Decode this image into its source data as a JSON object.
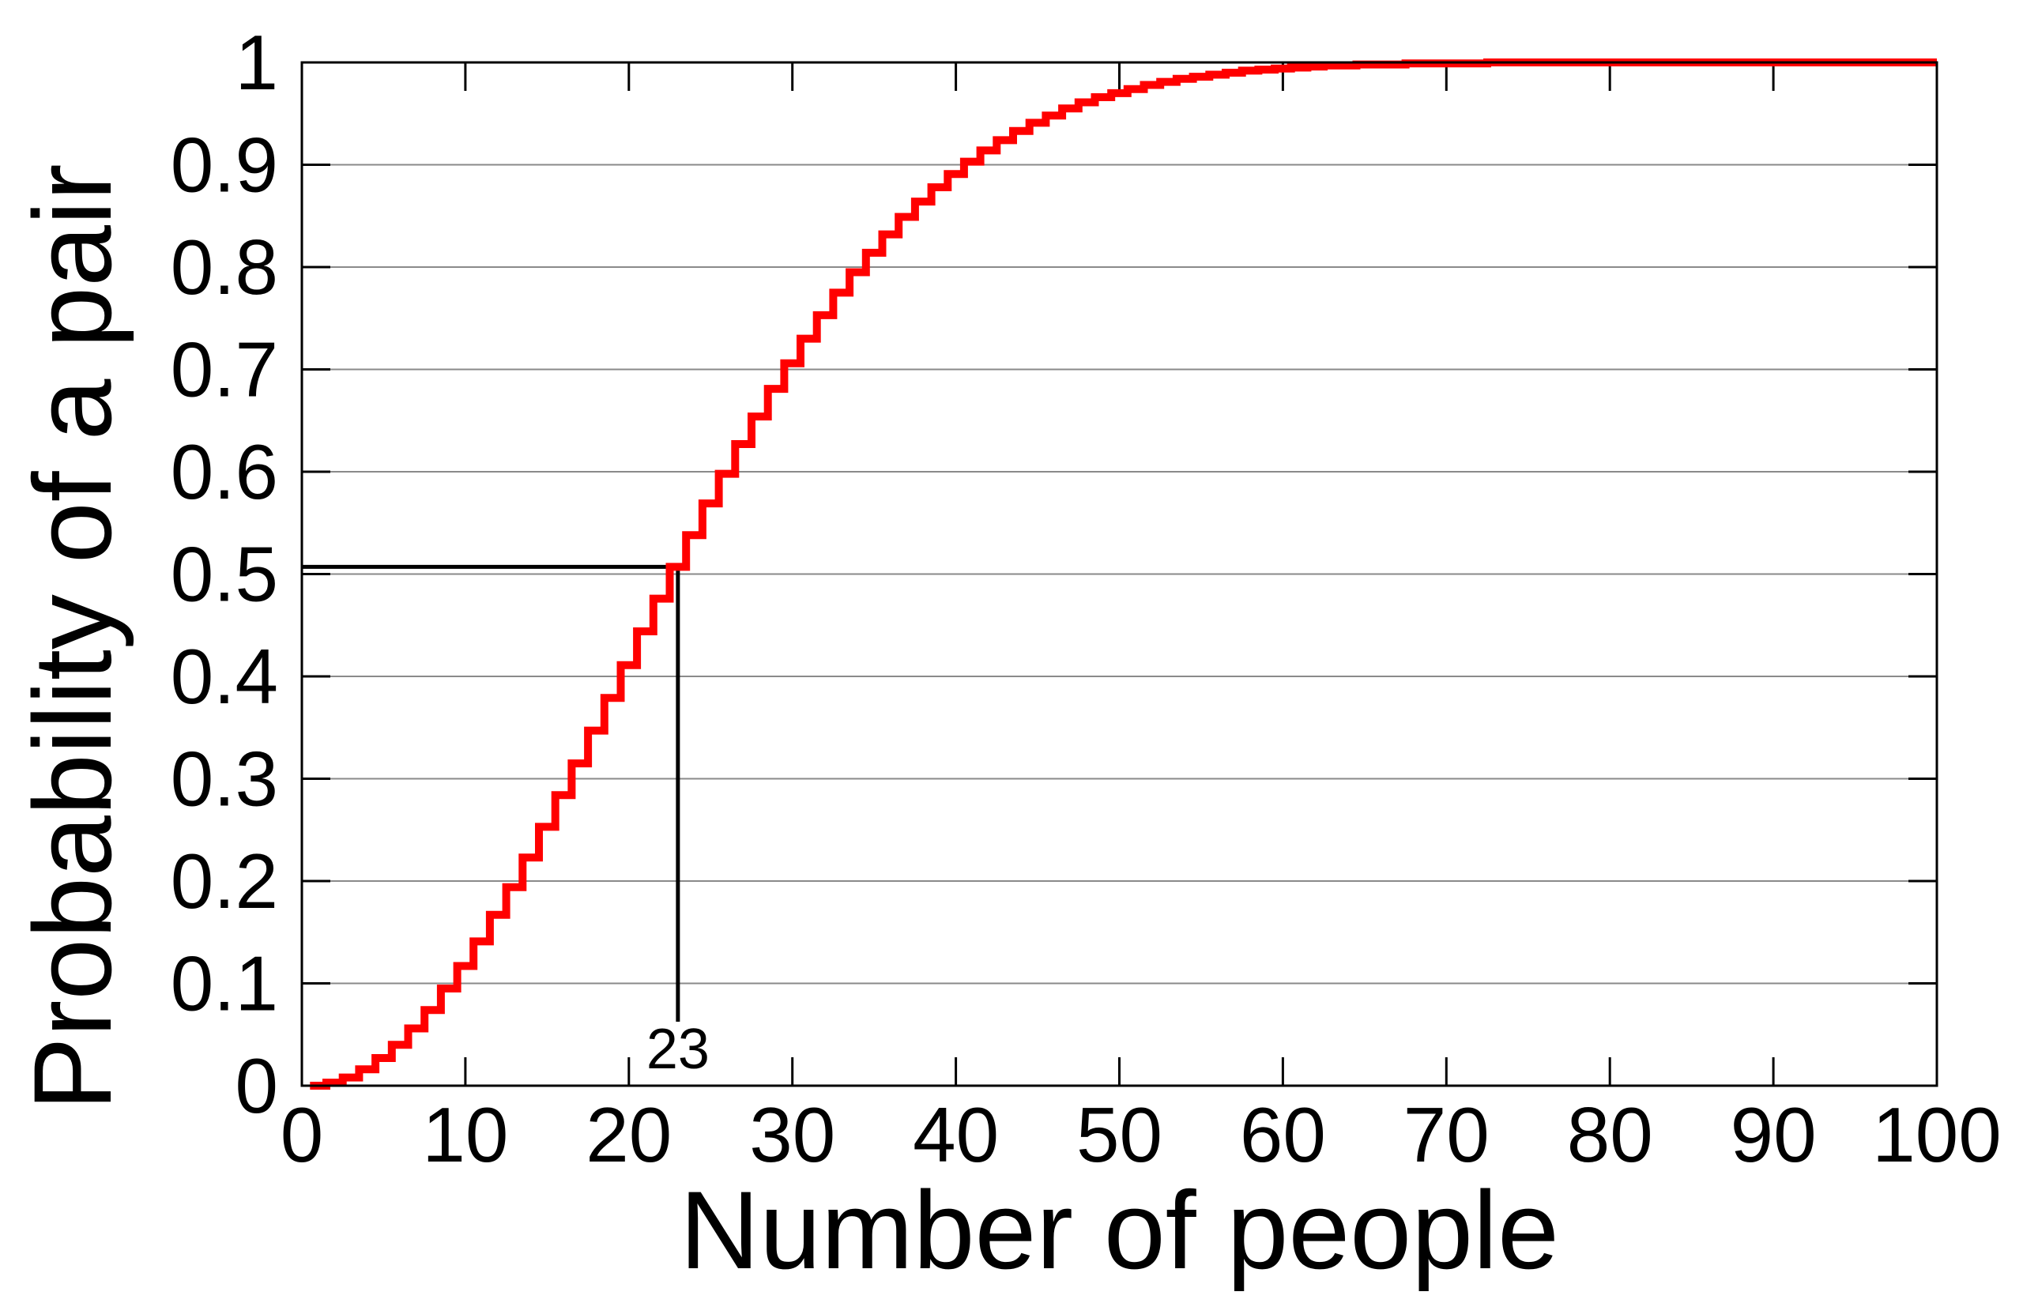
{
  "chart_data": {
    "type": "line",
    "step": true,
    "xlabel": "Number of people",
    "ylabel": "Probability of a pair",
    "xlim": [
      0,
      100
    ],
    "ylim": [
      0,
      1
    ],
    "grid": "horizontal",
    "xticks": [
      "0",
      "10",
      "20",
      "30",
      "40",
      "50",
      "60",
      "70",
      "80",
      "90",
      "100"
    ],
    "yticks": [
      "0",
      "0.1",
      "0.2",
      "0.3",
      "0.4",
      "0.5",
      "0.6",
      "0.7",
      "0.8",
      "0.9",
      "1"
    ],
    "series": [
      {
        "color": "#ff0000",
        "x": [
          1,
          2,
          3,
          4,
          5,
          6,
          7,
          8,
          9,
          10,
          11,
          12,
          13,
          14,
          15,
          16,
          17,
          18,
          19,
          20,
          21,
          22,
          23,
          24,
          25,
          26,
          27,
          28,
          29,
          30,
          31,
          32,
          33,
          34,
          35,
          36,
          37,
          38,
          39,
          40,
          41,
          42,
          43,
          44,
          45,
          46,
          47,
          48,
          49,
          50,
          51,
          52,
          53,
          54,
          55,
          56,
          57,
          58,
          59,
          60,
          61,
          62,
          63,
          64,
          65,
          66,
          67,
          68,
          69,
          70,
          71,
          72,
          73,
          74,
          75,
          76,
          77,
          78,
          79,
          80,
          81,
          82,
          83,
          84,
          85,
          86,
          87,
          88,
          89,
          90,
          91,
          92,
          93,
          94,
          95,
          96,
          97,
          98,
          99,
          100
        ],
        "y": [
          0,
          0.003,
          0.008,
          0.016,
          0.027,
          0.04,
          0.056,
          0.074,
          0.095,
          0.117,
          0.141,
          0.167,
          0.194,
          0.223,
          0.253,
          0.284,
          0.315,
          0.347,
          0.379,
          0.411,
          0.444,
          0.476,
          0.507,
          0.538,
          0.569,
          0.598,
          0.627,
          0.654,
          0.681,
          0.706,
          0.73,
          0.753,
          0.775,
          0.795,
          0.814,
          0.832,
          0.849,
          0.864,
          0.878,
          0.891,
          0.903,
          0.914,
          0.924,
          0.933,
          0.941,
          0.948,
          0.955,
          0.961,
          0.966,
          0.97,
          0.974,
          0.978,
          0.981,
          0.984,
          0.986,
          0.988,
          0.99,
          0.992,
          0.993,
          0.994,
          0.995,
          0.996,
          0.997,
          0.997,
          0.998,
          0.998,
          0.998,
          0.999,
          0.999,
          0.999,
          0.999,
          0.999,
          1,
          1,
          1,
          1,
          1,
          1,
          1,
          1,
          1,
          1,
          1,
          1,
          1,
          1,
          1,
          1,
          1,
          1,
          1,
          1,
          1,
          1,
          1,
          1,
          1,
          1,
          1,
          1
        ]
      }
    ],
    "annotation": {
      "label": "23",
      "x": 23,
      "y": 0.507
    }
  }
}
